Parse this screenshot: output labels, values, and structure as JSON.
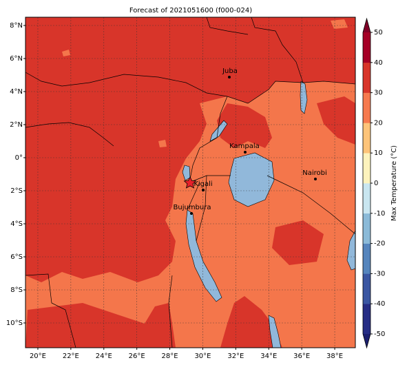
{
  "title": "Forecast of 2021051600 (f000-024)",
  "map": {
    "lon_range": [
      19.25,
      39.25
    ],
    "lat_range": [
      -11.5,
      8.5
    ],
    "lat_ticks": [
      {
        "value": 8,
        "label": "8°N"
      },
      {
        "value": 6,
        "label": "6°N"
      },
      {
        "value": 4,
        "label": "4°N"
      },
      {
        "value": 2,
        "label": "2°N"
      },
      {
        "value": 0,
        "label": "0°"
      },
      {
        "value": -2,
        "label": "2°S"
      },
      {
        "value": -4,
        "label": "4°S"
      },
      {
        "value": -6,
        "label": "6°S"
      },
      {
        "value": -8,
        "label": "8°S"
      },
      {
        "value": -10,
        "label": "10°S"
      }
    ],
    "lon_ticks": [
      {
        "value": 20,
        "label": "20°E"
      },
      {
        "value": 22,
        "label": "22°E"
      },
      {
        "value": 24,
        "label": "24°E"
      },
      {
        "value": 26,
        "label": "26°E"
      },
      {
        "value": 28,
        "label": "28°E"
      },
      {
        "value": 30,
        "label": "30°E"
      },
      {
        "value": 32,
        "label": "32°E"
      },
      {
        "value": 34,
        "label": "34°E"
      },
      {
        "value": 36,
        "label": "36°E"
      },
      {
        "value": 38,
        "label": "38°E"
      }
    ],
    "grid": true
  },
  "cities": [
    {
      "name": "Juba",
      "lon": 31.58,
      "lat": 4.85
    },
    {
      "name": "Kampala",
      "lon": 32.58,
      "lat": 0.32
    },
    {
      "name": "Nairobi",
      "lon": 36.82,
      "lat": -1.29
    },
    {
      "name": "Kigali",
      "lon": 30.06,
      "lat": -1.95
    },
    {
      "name": "Bujumbura",
      "lon": 29.36,
      "lat": -3.38
    }
  ],
  "colorbar": {
    "label": "Max Temperature (°C)",
    "range": [
      -50,
      50
    ],
    "ticks": [
      50,
      40,
      30,
      20,
      10,
      0,
      -10,
      -20,
      -30,
      -40,
      -50
    ],
    "colors": [
      "#262d85",
      "#3a56a2",
      "#5585bd",
      "#8bbad8",
      "#c9e6f0",
      "#fdf3bd",
      "#fdc47a",
      "#f67a4f",
      "#d8352a",
      "#a50026"
    ],
    "under_color": "#1b1f6e",
    "over_color": "#7f0026"
  }
}
